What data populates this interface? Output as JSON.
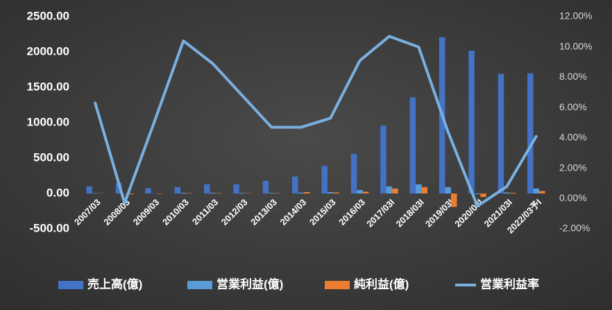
{
  "chart_data": {
    "type": "bar",
    "categories": [
      "2007/03",
      "2008/03",
      "2009/03",
      "2010/03",
      "2011/03",
      "2012/03",
      "2013/03",
      "2014/03",
      "2015/03",
      "2016/03",
      "2017/03I",
      "2018/03I",
      "2019/03I",
      "2020/03I",
      "2021/03I",
      "2022/03予I"
    ],
    "series": [
      {
        "name": "売上高(億)",
        "type": "bar",
        "color": "#4472c4",
        "values": [
          100,
          150,
          75,
          90,
          130,
          130,
          180,
          240,
          390,
          560,
          960,
          1360,
          2210,
          2020,
          1690,
          1700
        ]
      },
      {
        "name": "営業利益(億)",
        "type": "bar",
        "color": "#5b9bd5",
        "values": [
          5,
          -5,
          2,
          10,
          10,
          8,
          8,
          12,
          20,
          50,
          100,
          130,
          90,
          -10,
          15,
          70
        ]
      },
      {
        "name": "純利益(億)",
        "type": "bar",
        "color": "#ed7d31",
        "values": [
          3,
          -10,
          -5,
          5,
          5,
          4,
          5,
          20,
          15,
          25,
          70,
          90,
          -190,
          -50,
          10,
          35
        ]
      },
      {
        "name": "営業利益率",
        "type": "line",
        "axis": "y2",
        "color": "#7ab0e0",
        "values": [
          6.3,
          -0.3,
          5.0,
          10.4,
          8.9,
          6.8,
          4.7,
          4.7,
          5.3,
          9.1,
          10.7,
          10.0,
          4.4,
          -0.5,
          0.8,
          4.1
        ]
      }
    ],
    "ylim": [
      -500,
      2500
    ],
    "yticks": [
      {
        "value": -500,
        "label": "-500.00"
      },
      {
        "value": 0,
        "label": "0.00"
      },
      {
        "value": 500,
        "label": "500.00"
      },
      {
        "value": 1000,
        "label": "1000.00"
      },
      {
        "value": 1500,
        "label": "1500.00"
      },
      {
        "value": 2000,
        "label": "2000.00"
      },
      {
        "value": 2500,
        "label": "2500.00"
      }
    ],
    "y2lim": [
      -2,
      12
    ],
    "y2ticks": [
      {
        "value": -2,
        "label": "-2.00%"
      },
      {
        "value": 0,
        "label": "0.00%"
      },
      {
        "value": 2,
        "label": "2.00%"
      },
      {
        "value": 4,
        "label": "4.00%"
      },
      {
        "value": 6,
        "label": "6.00%"
      },
      {
        "value": 8,
        "label": "8.00%"
      },
      {
        "value": 10,
        "label": "10.00%"
      },
      {
        "value": 12,
        "label": "12.00%"
      }
    ],
    "legend": "bottom"
  }
}
